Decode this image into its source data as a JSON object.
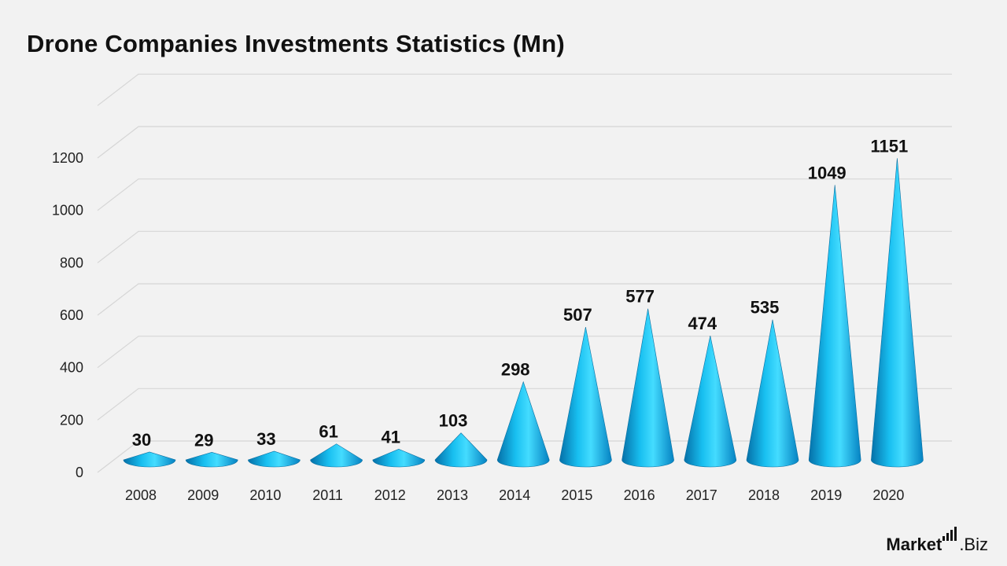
{
  "title": "Drone Companies Investments Statistics (Mn)",
  "brand": {
    "word": "Market",
    "dot_suffix": ".Biz"
  },
  "colors": {
    "cone_light": "#33d6ff",
    "cone_mid": "#0aa3e0",
    "cone_dark": "#0570a8",
    "grid": "#d6d6d6",
    "text": "#111111"
  },
  "chart_data": {
    "type": "bar",
    "style": "3d-cone",
    "categories": [
      "2008",
      "2009",
      "2010",
      "2011",
      "2012",
      "2013",
      "2014",
      "2015",
      "2016",
      "2017",
      "2018",
      "2019",
      "2020"
    ],
    "values": [
      30,
      29,
      33,
      61,
      41,
      103,
      298,
      507,
      577,
      474,
      535,
      1049,
      1151
    ],
    "ylim": [
      0,
      1200
    ],
    "yticks": [
      0,
      200,
      400,
      600,
      800,
      1000,
      1200
    ],
    "grid": true,
    "data_labels": true,
    "title": "Drone Companies Investments Statistics (Mn)",
    "xlabel": "",
    "ylabel": ""
  }
}
